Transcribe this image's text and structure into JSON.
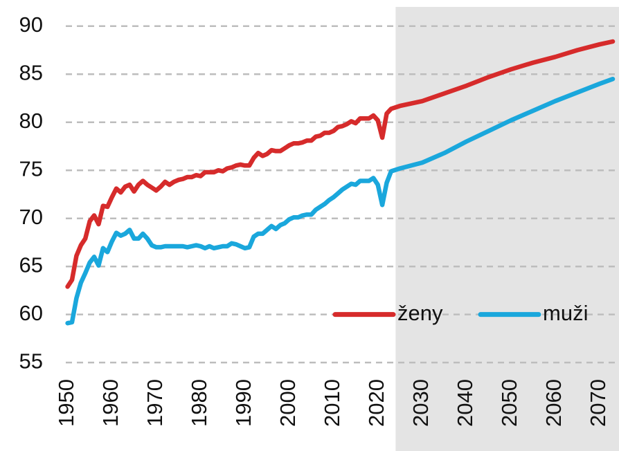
{
  "chart_data": {
    "type": "line",
    "x": [
      1950,
      1951,
      1952,
      1953,
      1954,
      1955,
      1956,
      1957,
      1958,
      1959,
      1960,
      1961,
      1962,
      1963,
      1964,
      1965,
      1966,
      1967,
      1968,
      1969,
      1970,
      1971,
      1972,
      1973,
      1974,
      1975,
      1976,
      1977,
      1978,
      1979,
      1980,
      1981,
      1982,
      1983,
      1984,
      1985,
      1986,
      1987,
      1988,
      1989,
      1990,
      1991,
      1992,
      1993,
      1994,
      1995,
      1996,
      1997,
      1998,
      1999,
      2000,
      2001,
      2002,
      2003,
      2004,
      2005,
      2006,
      2007,
      2008,
      2009,
      2010,
      2011,
      2012,
      2013,
      2014,
      2015,
      2016,
      2017,
      2018,
      2019,
      2020,
      2021,
      2022,
      2023,
      2025,
      2030,
      2035,
      2040,
      2045,
      2050,
      2055,
      2060,
      2065,
      2070,
      2073
    ],
    "series": [
      {
        "name": "ženy",
        "color": "#d62b2b",
        "values": [
          62.9,
          63.6,
          66.1,
          67.2,
          67.9,
          69.7,
          70.3,
          69.4,
          71.3,
          71.2,
          72.2,
          73.1,
          72.7,
          73.3,
          73.5,
          72.8,
          73.5,
          73.9,
          73.5,
          73.2,
          72.9,
          73.3,
          73.8,
          73.5,
          73.8,
          74.0,
          74.1,
          74.3,
          74.3,
          74.5,
          74.4,
          74.8,
          74.8,
          74.8,
          75.0,
          74.9,
          75.2,
          75.3,
          75.5,
          75.6,
          75.5,
          75.5,
          76.3,
          76.8,
          76.5,
          76.7,
          77.1,
          77.0,
          77.0,
          77.3,
          77.6,
          77.8,
          77.8,
          77.9,
          78.1,
          78.1,
          78.5,
          78.6,
          78.9,
          78.9,
          79.1,
          79.5,
          79.6,
          79.8,
          80.1,
          79.9,
          80.4,
          80.4,
          80.4,
          80.7,
          80.2,
          78.4,
          80.9,
          81.4,
          81.7,
          82.2,
          83.0,
          83.8,
          84.7,
          85.5,
          86.2,
          86.8,
          87.5,
          88.1,
          88.4
        ]
      },
      {
        "name": "muži",
        "color": "#1aa7dc",
        "values": [
          59.1,
          59.2,
          61.7,
          63.3,
          64.3,
          65.4,
          66.0,
          65.1,
          66.9,
          66.5,
          67.6,
          68.5,
          68.2,
          68.4,
          68.8,
          67.9,
          67.9,
          68.4,
          67.9,
          67.2,
          67.0,
          67.0,
          67.1,
          67.1,
          67.1,
          67.1,
          67.1,
          67.0,
          67.1,
          67.2,
          67.1,
          66.9,
          67.1,
          66.9,
          67.0,
          67.1,
          67.1,
          67.4,
          67.3,
          67.1,
          66.9,
          67.0,
          68.1,
          68.4,
          68.4,
          68.8,
          69.2,
          68.9,
          69.3,
          69.5,
          69.9,
          70.1,
          70.1,
          70.3,
          70.4,
          70.4,
          70.9,
          71.2,
          71.5,
          71.9,
          72.2,
          72.6,
          73.0,
          73.3,
          73.6,
          73.5,
          73.9,
          73.9,
          73.9,
          74.2,
          73.5,
          71.4,
          73.7,
          74.9,
          75.2,
          75.8,
          76.8,
          78.0,
          79.1,
          80.2,
          81.2,
          82.2,
          83.1,
          84.0,
          84.5
        ]
      }
    ],
    "xlim": [
      1948.5,
      2074.4
    ],
    "xticks": [
      1950,
      1960,
      1970,
      1980,
      1990,
      2000,
      2010,
      2020,
      2030,
      2040,
      2050,
      2060,
      2070
    ],
    "ylim": [
      53.5,
      92
    ],
    "yticks": [
      55,
      60,
      65,
      70,
      75,
      80,
      85,
      90
    ],
    "grid": true,
    "legend": "lower-right",
    "forecast_from": 2024
  }
}
